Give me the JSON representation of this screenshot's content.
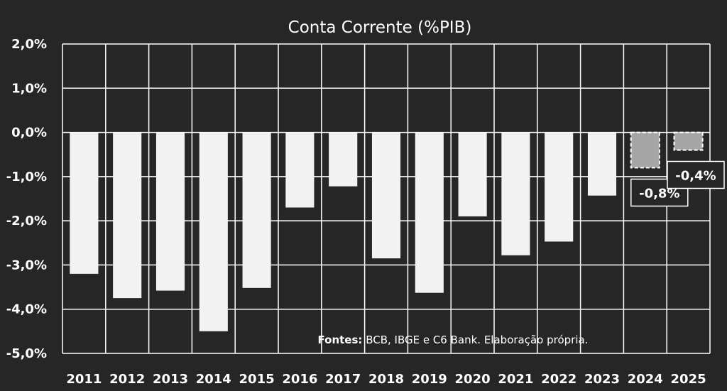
{
  "chart_data": {
    "type": "bar",
    "title": "Conta Corrente (%PIB)",
    "xlabel": "",
    "ylabel": "",
    "categories": [
      "2011",
      "2012",
      "2013",
      "2014",
      "2015",
      "2016",
      "2017",
      "2018",
      "2019",
      "2020",
      "2021",
      "2022",
      "2023",
      "2024",
      "2025"
    ],
    "values": [
      -3.2,
      -3.75,
      -3.58,
      -4.5,
      -3.52,
      -1.7,
      -1.22,
      -2.85,
      -3.63,
      -1.9,
      -2.78,
      -2.47,
      -1.43,
      -0.8,
      -0.4
    ],
    "projected": [
      false,
      false,
      false,
      false,
      false,
      false,
      false,
      false,
      false,
      false,
      false,
      false,
      false,
      true,
      true
    ],
    "data_labels": [
      {
        "category": "2024",
        "text": "-0,8%"
      },
      {
        "category": "2025",
        "text": "-0,4%"
      }
    ],
    "ylim": [
      -5.0,
      2.0
    ],
    "yticks": [
      2.0,
      1.0,
      0.0,
      -1.0,
      -2.0,
      -3.0,
      -4.0,
      -5.0
    ],
    "ytick_labels": [
      "2,0%",
      "1,0%",
      "0,0%",
      "-1,0%",
      "-2,0%",
      "-3,0%",
      "-4,0%",
      "-5,0%"
    ],
    "grid": true,
    "legend": "none",
    "colors": {
      "background": "#262626",
      "bar": "#f2f2f2",
      "bar_projected": "#a6a6a6",
      "grid": "#ffffff",
      "text": "#ffffff"
    },
    "annotation": {
      "bold": "Fontes:",
      "text": " BCB, IBGE e C6 Bank. Elaboração própria."
    }
  }
}
